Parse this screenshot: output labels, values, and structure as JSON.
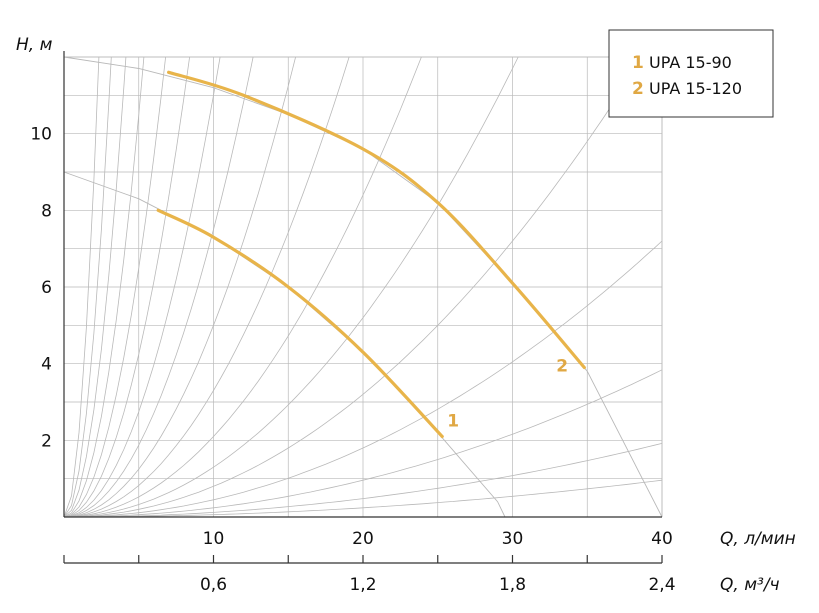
{
  "chart_data": {
    "type": "line",
    "x_label": "Q, л/мин",
    "x2_label": "Q, м³/ч",
    "y_label": "H, м",
    "xlim": [
      0,
      40
    ],
    "ylim": [
      0,
      12
    ],
    "x_ticks": [
      "10",
      "20",
      "30",
      "40"
    ],
    "x2_ticks": [
      "0,6",
      "1,2",
      "1,8",
      "2,4"
    ],
    "y_ticks": [
      "2",
      "4",
      "6",
      "8",
      "10"
    ],
    "grid": true,
    "legend_position": "top-right",
    "colors": {
      "curve": "#e8b44a",
      "label": "#e0a844",
      "grid": "#b9b9b9",
      "axis": "#333333"
    },
    "series": [
      {
        "name": "UPA 15-90",
        "legend_number": "1",
        "curve_label": "1",
        "x": [
          6.3,
          10,
          15,
          20,
          25.3
        ],
        "y": [
          8.0,
          7.3,
          6.0,
          4.3,
          2.1
        ]
      },
      {
        "name": "UPA 15-120",
        "legend_number": "2",
        "curve_label": "2",
        "x": [
          7,
          12,
          20,
          25,
          30,
          34.8
        ],
        "y": [
          11.6,
          11.0,
          9.6,
          8.2,
          6.1,
          3.9
        ]
      }
    ],
    "legend": [
      {
        "number": "1",
        "text": "UPA 15-90"
      },
      {
        "number": "2",
        "text": "UPA 15-120"
      }
    ]
  }
}
